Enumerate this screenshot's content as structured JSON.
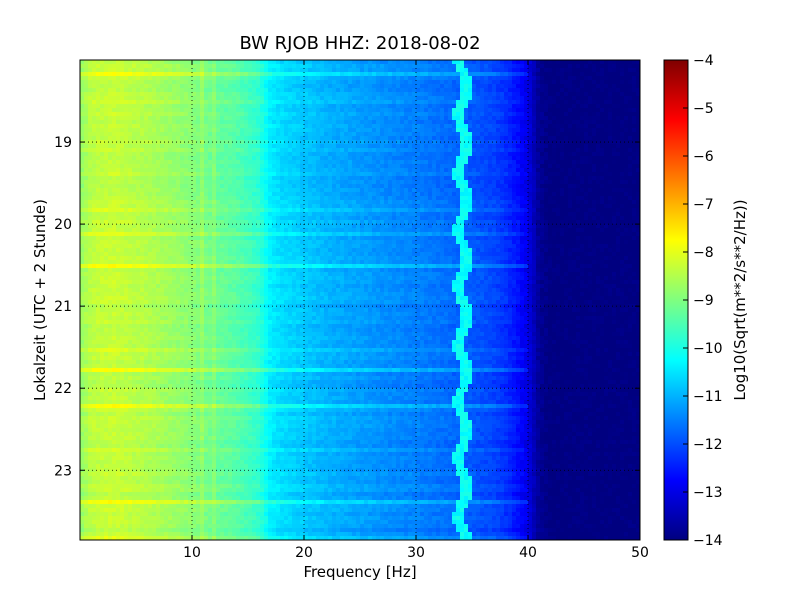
{
  "chart_data": {
    "type": "heatmap",
    "title": "BW RJOB HHZ: 2018-08-02",
    "xlabel": "Frequency [Hz]",
    "ylabel": "Lokalzeit (UTC + 2 Stunde)",
    "xlim": [
      0,
      50
    ],
    "ylim": [
      18.0,
      23.85
    ],
    "y_inverted": true,
    "x_ticks": [
      10,
      20,
      30,
      40,
      50
    ],
    "x_tick_labels": [
      "10",
      "20",
      "30",
      "40",
      "50"
    ],
    "y_ticks": [
      19,
      20,
      21,
      22,
      23
    ],
    "y_tick_labels": [
      "19",
      "20",
      "21",
      "22",
      "23"
    ],
    "grid": true,
    "colormap": "jet",
    "colorbar": {
      "label": "Log10(Sqrt(m**2/s**2/Hz))",
      "range": [
        -14,
        -4
      ],
      "ticks": [
        -4,
        -5,
        -6,
        -7,
        -8,
        -9,
        -10,
        -11,
        -12,
        -13,
        -14
      ],
      "tick_labels": [
        "−4",
        "−5",
        "−6",
        "−7",
        "−8",
        "−9",
        "−10",
        "−11",
        "−12",
        "−13",
        "−14"
      ]
    },
    "spectrum_profile": {
      "frequency_hz": [
        0,
        1,
        3,
        6,
        10,
        12,
        14,
        16,
        17,
        18,
        20,
        22,
        25,
        28,
        30,
        33,
        35,
        37,
        38,
        39,
        40,
        41,
        42,
        50
      ],
      "log10_amplitude": [
        -8.8,
        -8.4,
        -8.3,
        -8.5,
        -8.9,
        -9.2,
        -9.4,
        -9.8,
        -10.4,
        -10.6,
        -10.8,
        -11.0,
        -11.2,
        -11.4,
        -11.5,
        -11.7,
        -11.9,
        -12.1,
        -12.3,
        -12.6,
        -13.0,
        -13.8,
        -14.0,
        -14.0
      ]
    },
    "narrowband_line": {
      "frequency_hz": 34.2,
      "log10_amplitude": -10.2
    },
    "minor_lines_hz": [
      11,
      12,
      20
    ]
  }
}
